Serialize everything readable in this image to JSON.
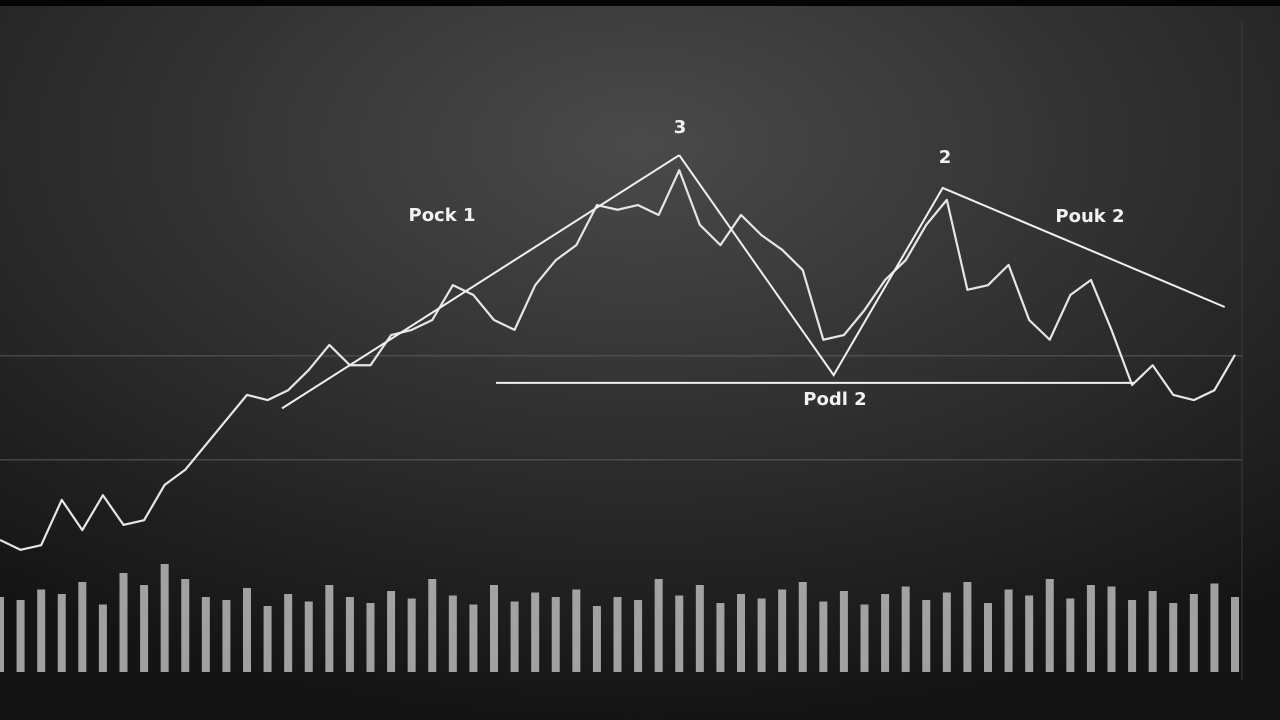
{
  "chart_data": {
    "type": "line",
    "color": "#e6e6e6",
    "values": [
      7.7,
      5.8,
      6.7,
      15.4,
      9.6,
      16.3,
      10.6,
      11.5,
      18.3,
      21.2,
      26.0,
      30.8,
      35.6,
      34.6,
      36.5,
      40.4,
      45.2,
      41.3,
      41.3,
      47.1,
      48.1,
      50.0,
      56.7,
      54.8,
      50.0,
      48.1,
      56.7,
      61.5,
      64.4,
      72.1,
      71.2,
      72.1,
      70.2,
      78.8,
      68.3,
      64.4,
      70.2,
      66.3,
      63.5,
      59.6,
      46.2,
      47.1,
      51.9,
      57.7,
      61.5,
      68.3,
      73.1,
      55.8,
      56.7,
      60.6,
      50.0,
      46.2,
      54.8,
      57.7,
      48.1,
      37.5,
      41.3,
      35.6,
      34.6,
      36.5,
      43.3
    ],
    "ylim": [
      0,
      100
    ],
    "volume": [
      50,
      48,
      55,
      52,
      60,
      45,
      66,
      58,
      72,
      62,
      50,
      48,
      56,
      44,
      52,
      47,
      58,
      50,
      46,
      54,
      49,
      62,
      51,
      45,
      58,
      47,
      53,
      50,
      55,
      44,
      50,
      48,
      62,
      51,
      58,
      46,
      52,
      49,
      55,
      60,
      47,
      54,
      45,
      52,
      57,
      48,
      53,
      60,
      46,
      55,
      51,
      62,
      49,
      58,
      57,
      48,
      54,
      46,
      52,
      59,
      50
    ],
    "volume_color": "#cfcfcf",
    "trendlines": [
      {
        "x": [
          13.7,
          33.0
        ],
        "y": [
          33.0,
          81.7
        ]
      },
      {
        "x": [
          33.0,
          40.5,
          45.8,
          59.5
        ],
        "y": [
          81.7,
          39.4,
          75.4,
          52.5
        ]
      },
      {
        "x": [
          24.1,
          55.1
        ],
        "y": [
          37.9,
          37.9
        ]
      }
    ],
    "levels": [
      43.1,
      23.1
    ],
    "annotations": [
      "3",
      "2",
      "Pock 1",
      "Pouk 2",
      "Podl 2"
    ]
  }
}
